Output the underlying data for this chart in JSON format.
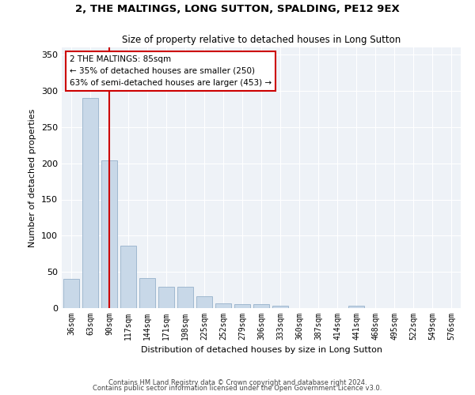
{
  "title1": "2, THE MALTINGS, LONG SUTTON, SPALDING, PE12 9EX",
  "title2": "Size of property relative to detached houses in Long Sutton",
  "xlabel": "Distribution of detached houses by size in Long Sutton",
  "ylabel": "Number of detached properties",
  "bar_color": "#c8d8e8",
  "bar_edge_color": "#a0b8d0",
  "vline_color": "#cc0000",
  "vline_x": 2,
  "annotation_text": "2 THE MALTINGS: 85sqm\n← 35% of detached houses are smaller (250)\n63% of semi-detached houses are larger (453) →",
  "annotation_box_color": "white",
  "annotation_box_edge_color": "#cc0000",
  "categories": [
    "36sqm",
    "63sqm",
    "90sqm",
    "117sqm",
    "144sqm",
    "171sqm",
    "198sqm",
    "225sqm",
    "252sqm",
    "279sqm",
    "306sqm",
    "333sqm",
    "360sqm",
    "387sqm",
    "414sqm",
    "441sqm",
    "468sqm",
    "495sqm",
    "522sqm",
    "549sqm",
    "576sqm"
  ],
  "values": [
    40,
    290,
    204,
    86,
    42,
    30,
    30,
    16,
    7,
    5,
    5,
    3,
    0,
    0,
    0,
    3,
    0,
    0,
    0,
    0,
    0
  ],
  "ylim": [
    0,
    360
  ],
  "yticks": [
    0,
    50,
    100,
    150,
    200,
    250,
    300,
    350
  ],
  "footer1": "Contains HM Land Registry data © Crown copyright and database right 2024.",
  "footer2": "Contains public sector information licensed under the Open Government Licence v3.0.",
  "plot_bg_color": "#eef2f7"
}
